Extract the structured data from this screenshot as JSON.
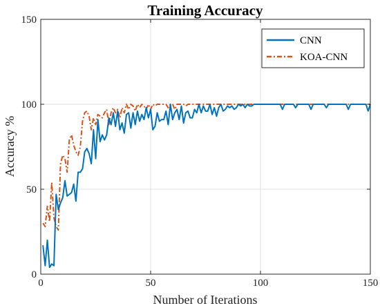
{
  "chart_data": {
    "type": "line",
    "title": "Training Accuracy",
    "xlabel": "Number of Iterations",
    "ylabel": "Accuracy %",
    "xlim": [
      0,
      150
    ],
    "ylim": [
      0,
      150
    ],
    "xticks": [
      0,
      50,
      100,
      150
    ],
    "yticks": [
      0,
      50,
      100,
      150
    ],
    "grid": true,
    "legend_position": "top-right",
    "series": [
      {
        "name": "CNN",
        "color": "#0072BD",
        "style": "solid",
        "x": [
          1,
          2,
          3,
          4,
          5,
          6,
          7,
          8,
          9,
          10,
          11,
          12,
          13,
          14,
          15,
          16,
          17,
          18,
          19,
          20,
          21,
          22,
          23,
          24,
          25,
          26,
          27,
          28,
          29,
          30,
          31,
          32,
          33,
          34,
          35,
          36,
          37,
          38,
          39,
          40,
          41,
          42,
          43,
          44,
          45,
          46,
          47,
          48,
          49,
          50,
          51,
          52,
          53,
          54,
          55,
          56,
          57,
          58,
          59,
          60,
          61,
          62,
          63,
          64,
          65,
          66,
          67,
          68,
          69,
          70,
          71,
          72,
          73,
          74,
          75,
          76,
          77,
          78,
          79,
          80,
          81,
          82,
          83,
          84,
          85,
          86,
          87,
          88,
          89,
          90,
          91,
          92,
          93,
          94,
          95,
          96,
          97,
          98,
          99,
          100,
          101,
          102,
          103,
          104,
          105,
          106,
          107,
          108,
          109,
          110,
          111,
          112,
          113,
          114,
          115,
          116,
          117,
          118,
          119,
          120,
          121,
          122,
          123,
          124,
          125,
          126,
          127,
          128,
          129,
          130,
          131,
          132,
          133,
          134,
          135,
          136,
          137,
          138,
          139,
          140,
          141,
          142,
          143,
          144,
          145,
          146,
          147,
          148,
          149,
          150
        ],
        "y": [
          17,
          5,
          20,
          4,
          6,
          5,
          47,
          38,
          42,
          45,
          55,
          46,
          47,
          48,
          53,
          43,
          60,
          60,
          62,
          72,
          74,
          71,
          65,
          85,
          68,
          91,
          78,
          82,
          79,
          82,
          92,
          88,
          95,
          87,
          96,
          85,
          89,
          83,
          94,
          95,
          86,
          95,
          88,
          96,
          90,
          94,
          91,
          98,
          92,
          97,
          85,
          87,
          95,
          90,
          91,
          91,
          96,
          88,
          100,
          91,
          95,
          97,
          91,
          99,
          89,
          95,
          96,
          92,
          92,
          97,
          95,
          100,
          95,
          99,
          96,
          96,
          100,
          94,
          98,
          93,
          98,
          100,
          96,
          97,
          99,
          98,
          99,
          97,
          98,
          100,
          99,
          100,
          98,
          100,
          99,
          99,
          100,
          100,
          100,
          100,
          100,
          100,
          100,
          100,
          100,
          100,
          100,
          100,
          100,
          97,
          100,
          100,
          100,
          100,
          100,
          98,
          100,
          100,
          100,
          100,
          100,
          100,
          97,
          100,
          100,
          100,
          100,
          100,
          100,
          98,
          100,
          100,
          100,
          100,
          100,
          100,
          100,
          100,
          100,
          97,
          100,
          100,
          100,
          100,
          100,
          100,
          100,
          100,
          96,
          100
        ]
      },
      {
        "name": "KOA-CNN",
        "color": "#D95319",
        "style": "dashdot",
        "x": [
          1,
          2,
          3,
          4,
          5,
          6,
          7,
          8,
          9,
          10,
          11,
          12,
          13,
          14,
          15,
          16,
          17,
          18,
          19,
          20,
          21,
          22,
          23,
          24,
          25,
          26,
          27,
          28,
          29,
          30,
          31,
          32,
          33,
          34,
          35,
          36,
          37,
          38,
          39,
          40,
          41,
          42,
          43,
          44,
          45,
          46,
          47,
          48,
          49,
          50,
          51,
          52,
          53,
          54,
          55,
          56,
          57,
          58,
          59,
          60,
          61,
          62,
          63,
          64,
          65,
          66,
          67,
          68,
          69,
          70,
          71,
          72,
          73,
          74,
          75,
          76,
          77,
          78,
          79,
          80,
          81,
          82,
          83,
          84,
          85,
          86,
          87,
          88,
          89,
          90,
          91,
          92,
          93,
          94,
          95,
          96,
          97,
          98,
          99,
          100,
          101,
          102,
          103,
          104,
          105,
          106,
          107,
          108,
          109,
          110,
          111,
          112,
          113,
          114,
          115,
          116,
          117,
          118,
          119,
          120,
          121,
          122,
          123,
          124,
          125,
          126,
          127,
          128,
          129,
          130,
          131,
          132,
          133,
          134,
          135,
          136,
          137,
          138,
          139,
          140,
          141,
          142,
          143,
          144,
          145,
          146,
          147,
          148,
          149,
          150
        ],
        "y": [
          30,
          28,
          40,
          31,
          54,
          33,
          28,
          26,
          65,
          70,
          68,
          60,
          79,
          82,
          76,
          72,
          70,
          75,
          90,
          95,
          96,
          93,
          85,
          92,
          88,
          94,
          93,
          92,
          95,
          97,
          88,
          95,
          98,
          95,
          97,
          92,
          98,
          95,
          100,
          97,
          100,
          99,
          96,
          100,
          98,
          100,
          99,
          97,
          100,
          97,
          100,
          99,
          100,
          100,
          100,
          100,
          100,
          98,
          100,
          100,
          97,
          100,
          100,
          100,
          100,
          99,
          100,
          100,
          100,
          100,
          100,
          100,
          100,
          100,
          100,
          100,
          100,
          100,
          100,
          100,
          100,
          100,
          100,
          100,
          100,
          100,
          100,
          100,
          100,
          100,
          100,
          100,
          100,
          100,
          100,
          100,
          100,
          100,
          100,
          100,
          100,
          100,
          100,
          100,
          100,
          100,
          100,
          100,
          100,
          100,
          100,
          100,
          100,
          100,
          100,
          100,
          100,
          100,
          100,
          100,
          100,
          100,
          100,
          100,
          100,
          100,
          100,
          100,
          100,
          100,
          100,
          100,
          100,
          100,
          100,
          100,
          100,
          100,
          100,
          100,
          100,
          100,
          100,
          100,
          100,
          100,
          100,
          100,
          100,
          100
        ]
      }
    ]
  }
}
